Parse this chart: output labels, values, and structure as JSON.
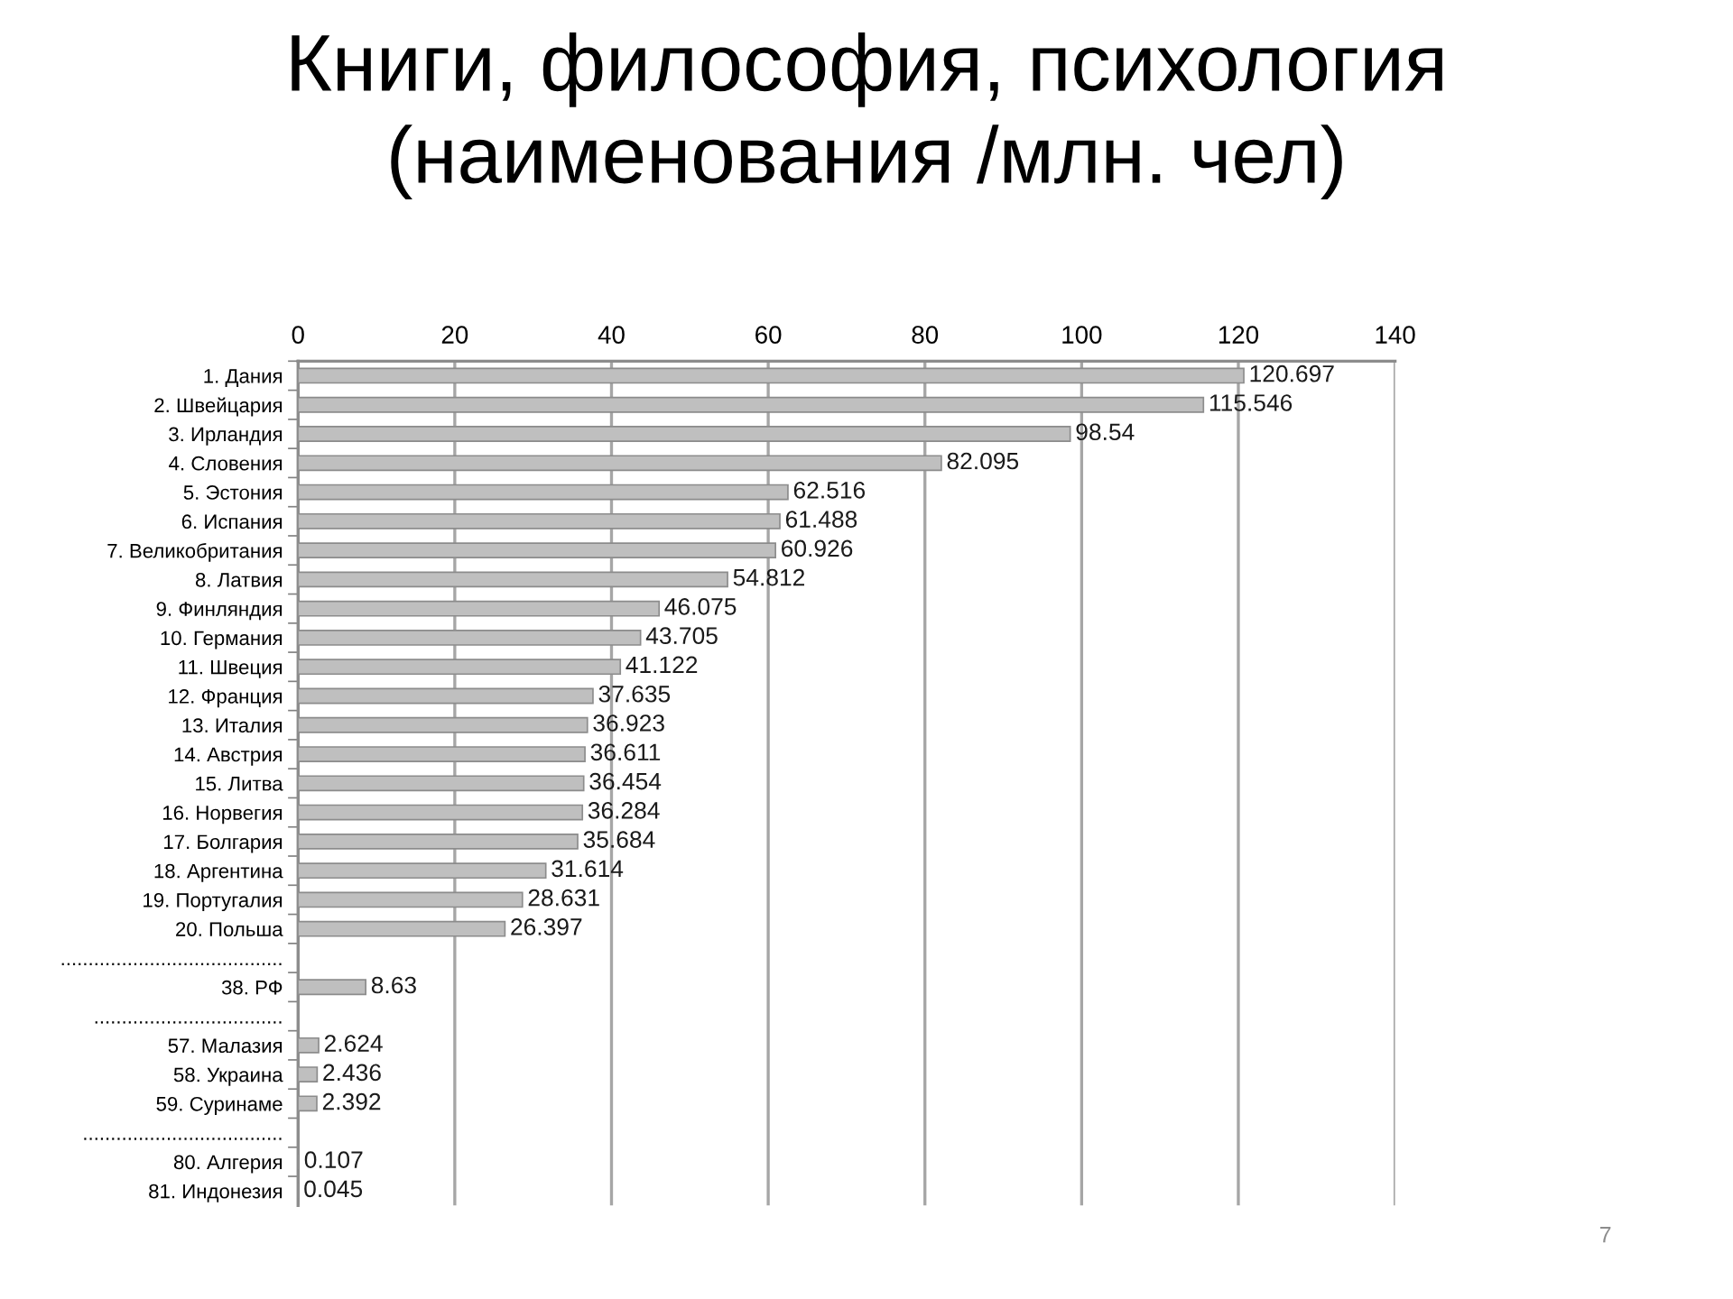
{
  "chart_data": {
    "type": "bar",
    "orientation": "horizontal",
    "title": "Книги, философия, психология\n(наименования /млн. чел)",
    "categories": [
      "1. Дания",
      "2. Швейцария",
      "3. Ирландия",
      "4. Словения",
      "5. Эстония",
      "6. Испания",
      "7. Великобритания",
      "8. Латвия",
      "9. Финляндия",
      "10. Германия",
      "11. Швеция",
      "12. Франция",
      "13. Италия",
      "14. Австрия",
      "15. Литва",
      "16. Норвегия",
      "17. Болгария",
      "18. Аргентина",
      "19. Португалия",
      "20. Польша",
      "........................................",
      "38. РФ",
      "..................................",
      "57. Малазия",
      "58. Украина",
      "59. Суринаме",
      "....................................",
      "80. Алгерия",
      "81. Индонезия"
    ],
    "values": [
      120.697,
      115.546,
      98.54,
      82.095,
      62.516,
      61.488,
      60.926,
      54.812,
      46.075,
      43.705,
      41.122,
      37.635,
      36.923,
      36.611,
      36.454,
      36.284,
      35.684,
      31.614,
      28.631,
      26.397,
      null,
      8.63,
      null,
      2.624,
      2.436,
      2.392,
      null,
      0.107,
      0.045
    ],
    "color": "#bfbfbf",
    "data_labels": true,
    "xlim": [
      0,
      140
    ],
    "xticks": [
      0,
      20,
      40,
      60,
      80,
      100,
      120,
      140
    ],
    "grid": "x",
    "annotations": [
      "7"
    ]
  }
}
